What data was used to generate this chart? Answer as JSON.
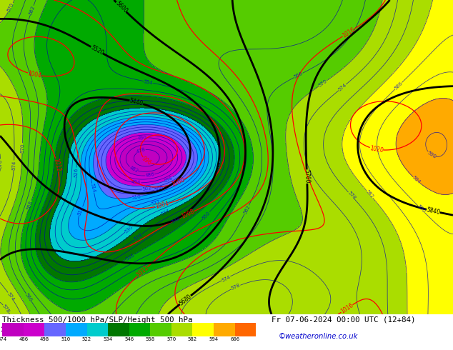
{
  "title_left": "Thickness 500/1000 hPa/SLP/Height 500 hPa",
  "title_right": "Fr 07-06-2024 00:00 UTC (12+84)",
  "credit": "©weatheronline.co.uk",
  "colorbar_values": [
    474,
    486,
    498,
    510,
    522,
    534,
    546,
    558,
    570,
    582,
    594,
    606
  ],
  "colorbar_colors": [
    "#c000c0",
    "#cc00cc",
    "#6666ff",
    "#00aaff",
    "#00cccc",
    "#007700",
    "#00aa00",
    "#55cc00",
    "#aadd00",
    "#ffff00",
    "#ffaa00",
    "#ff6600"
  ],
  "background_color": "#ffffff",
  "fig_width": 6.34,
  "fig_height": 4.9
}
